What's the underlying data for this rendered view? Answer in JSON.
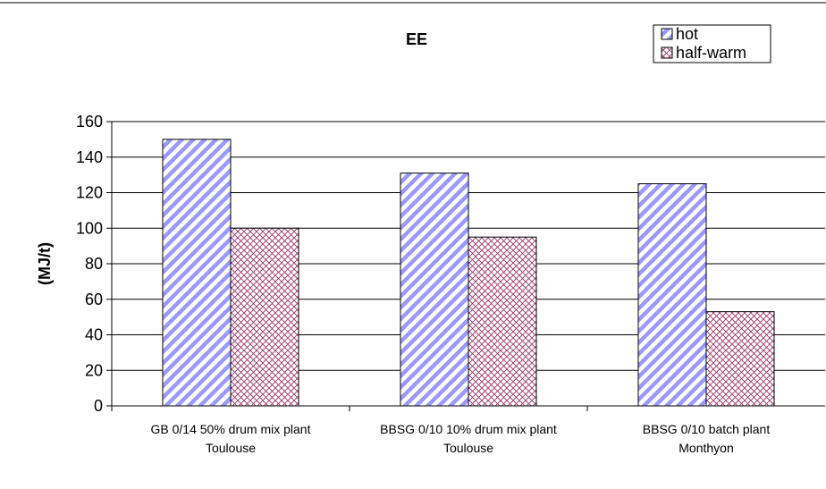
{
  "chart_data": {
    "type": "bar",
    "title": "EE",
    "xlabel": "",
    "ylabel": "(MJ/t)",
    "ylim": [
      0,
      160
    ],
    "yticks": [
      0,
      20,
      40,
      60,
      80,
      100,
      120,
      140,
      160
    ],
    "grid": true,
    "legend_position": "top-right",
    "categories": [
      [
        "GB 0/14 50% drum mix plant",
        "Toulouse"
      ],
      [
        "BBSG 0/10 10% drum mix plant",
        "Toulouse"
      ],
      [
        "BBSG 0/10 batch plant",
        "Monthyon"
      ]
    ],
    "series": [
      {
        "name": "hot",
        "values": [
          150,
          131,
          125
        ],
        "color": "#9999ff",
        "pattern": "diagonal-stripes"
      },
      {
        "name": "half-warm",
        "values": [
          100,
          95,
          53
        ],
        "color": "#993366",
        "pattern": "crosshatch"
      }
    ]
  }
}
